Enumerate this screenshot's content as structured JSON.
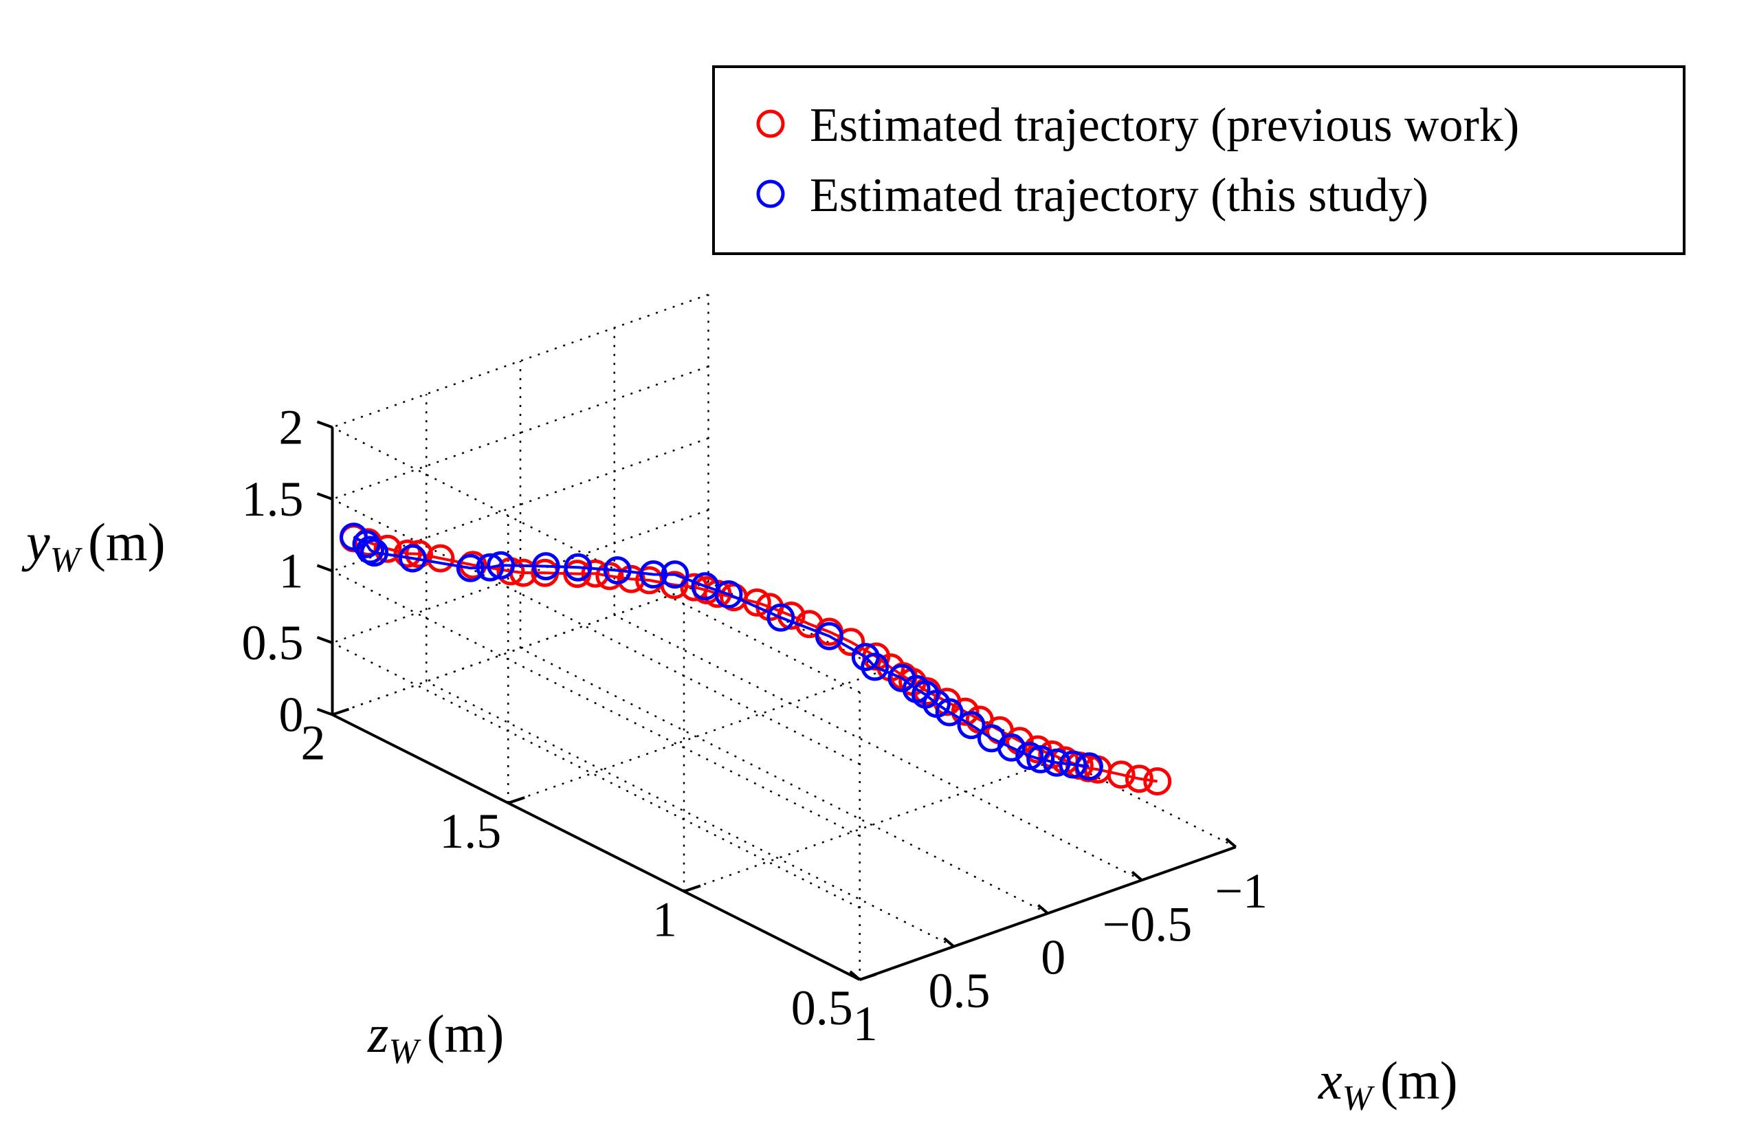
{
  "chart_data": {
    "type": "scatter3d-line",
    "title": "",
    "xlabel": {
      "var": "x",
      "sub": "W",
      "unit": "(m)"
    },
    "ylabel": {
      "var": "y",
      "sub": "W",
      "unit": "(m)"
    },
    "zlabel": {
      "var": "z",
      "sub": "W",
      "unit": "(m)"
    },
    "xlim": [
      -1,
      1
    ],
    "ylim": [
      0,
      2
    ],
    "zlim": [
      0.5,
      2
    ],
    "x_ticks": [
      "1",
      "0.5",
      "0",
      "−0.5",
      "−1"
    ],
    "y_ticks": [
      "0",
      "0.5",
      "1",
      "1.5",
      "2"
    ],
    "z_ticks": [
      "0.5",
      "1",
      "1.5",
      "2"
    ],
    "grid": true,
    "legend_position": "top-right",
    "series": [
      {
        "name": "Estimated trajectory (previous work)",
        "color": "#ff0000",
        "marker": "circle-open",
        "points": [
          [
            0.98,
            1.28,
            1.95
          ],
          [
            0.96,
            1.28,
            1.92
          ],
          [
            0.93,
            1.27,
            1.88
          ],
          [
            0.88,
            1.25,
            1.85
          ],
          [
            0.82,
            1.22,
            1.85
          ],
          [
            0.78,
            1.22,
            1.81
          ],
          [
            0.72,
            1.22,
            1.75
          ],
          [
            0.65,
            1.23,
            1.68
          ],
          [
            0.62,
            1.23,
            1.66
          ],
          [
            0.58,
            1.26,
            1.62
          ],
          [
            0.52,
            1.3,
            1.56
          ],
          [
            0.48,
            1.32,
            1.53
          ],
          [
            0.46,
            1.33,
            1.5
          ],
          [
            0.42,
            1.34,
            1.46
          ],
          [
            0.38,
            1.35,
            1.43
          ],
          [
            0.34,
            1.36,
            1.38
          ],
          [
            0.31,
            1.38,
            1.34
          ],
          [
            0.28,
            1.37,
            1.32
          ],
          [
            0.26,
            1.36,
            1.3
          ],
          [
            0.23,
            1.36,
            1.27
          ],
          [
            0.2,
            1.37,
            1.22
          ],
          [
            0.17,
            1.35,
            1.2
          ],
          [
            0.13,
            1.32,
            1.16
          ],
          [
            0.09,
            1.28,
            1.13
          ],
          [
            0.04,
            1.24,
            1.1
          ],
          [
            0.0,
            1.2,
            1.06
          ],
          [
            -0.06,
            1.12,
            1.02
          ],
          [
            -0.1,
            1.05,
            1.0
          ],
          [
            -0.13,
            1.0,
            0.98
          ],
          [
            -0.16,
            0.96,
            0.97
          ],
          [
            -0.2,
            0.9,
            0.95
          ],
          [
            -0.25,
            0.84,
            0.92
          ],
          [
            -0.29,
            0.79,
            0.89
          ],
          [
            -0.33,
            0.74,
            0.87
          ],
          [
            -0.38,
            0.68,
            0.84
          ],
          [
            -0.43,
            0.62,
            0.81
          ],
          [
            -0.47,
            0.58,
            0.78
          ],
          [
            -0.51,
            0.55,
            0.76
          ],
          [
            -0.54,
            0.52,
            0.74
          ],
          [
            -0.58,
            0.49,
            0.72
          ],
          [
            -0.61,
            0.47,
            0.71
          ],
          [
            -0.64,
            0.46,
            0.7
          ],
          [
            -0.69,
            0.45,
            0.66
          ],
          [
            -0.73,
            0.44,
            0.63
          ],
          [
            -0.77,
            0.44,
            0.6
          ]
        ]
      },
      {
        "name": "Estimated trajectory (this study)",
        "color": "#0000ff",
        "marker": "circle-open",
        "points": [
          [
            0.98,
            1.29,
            1.95
          ],
          [
            0.95,
            1.25,
            1.93
          ],
          [
            0.93,
            1.2,
            1.93
          ],
          [
            0.87,
            1.13,
            1.95
          ],
          [
            0.76,
            1.1,
            1.9
          ],
          [
            0.64,
            1.1,
            1.8
          ],
          [
            0.61,
            1.14,
            1.76
          ],
          [
            0.59,
            1.17,
            1.74
          ],
          [
            0.5,
            1.22,
            1.66
          ],
          [
            0.46,
            1.28,
            1.59
          ],
          [
            0.4,
            1.33,
            1.51
          ],
          [
            0.34,
            1.36,
            1.44
          ],
          [
            0.3,
            1.39,
            1.4
          ],
          [
            0.27,
            1.38,
            1.33
          ],
          [
            0.22,
            1.35,
            1.29
          ],
          [
            0.13,
            1.27,
            1.19
          ],
          [
            0.04,
            1.21,
            1.1
          ],
          [
            -0.06,
            1.08,
            1.05
          ],
          [
            -0.09,
            1.01,
            1.04
          ],
          [
            -0.14,
            0.97,
            0.99
          ],
          [
            -0.18,
            0.9,
            0.97
          ],
          [
            -0.21,
            0.86,
            0.96
          ],
          [
            -0.25,
            0.79,
            0.95
          ],
          [
            -0.3,
            0.72,
            0.94
          ],
          [
            -0.36,
            0.64,
            0.91
          ],
          [
            -0.43,
            0.54,
            0.89
          ],
          [
            -0.48,
            0.49,
            0.86
          ],
          [
            -0.52,
            0.45,
            0.83
          ],
          [
            -0.56,
            0.42,
            0.82
          ],
          [
            -0.59,
            0.42,
            0.79
          ],
          [
            -0.62,
            0.43,
            0.76
          ],
          [
            -0.65,
            0.44,
            0.73
          ]
        ]
      }
    ]
  }
}
